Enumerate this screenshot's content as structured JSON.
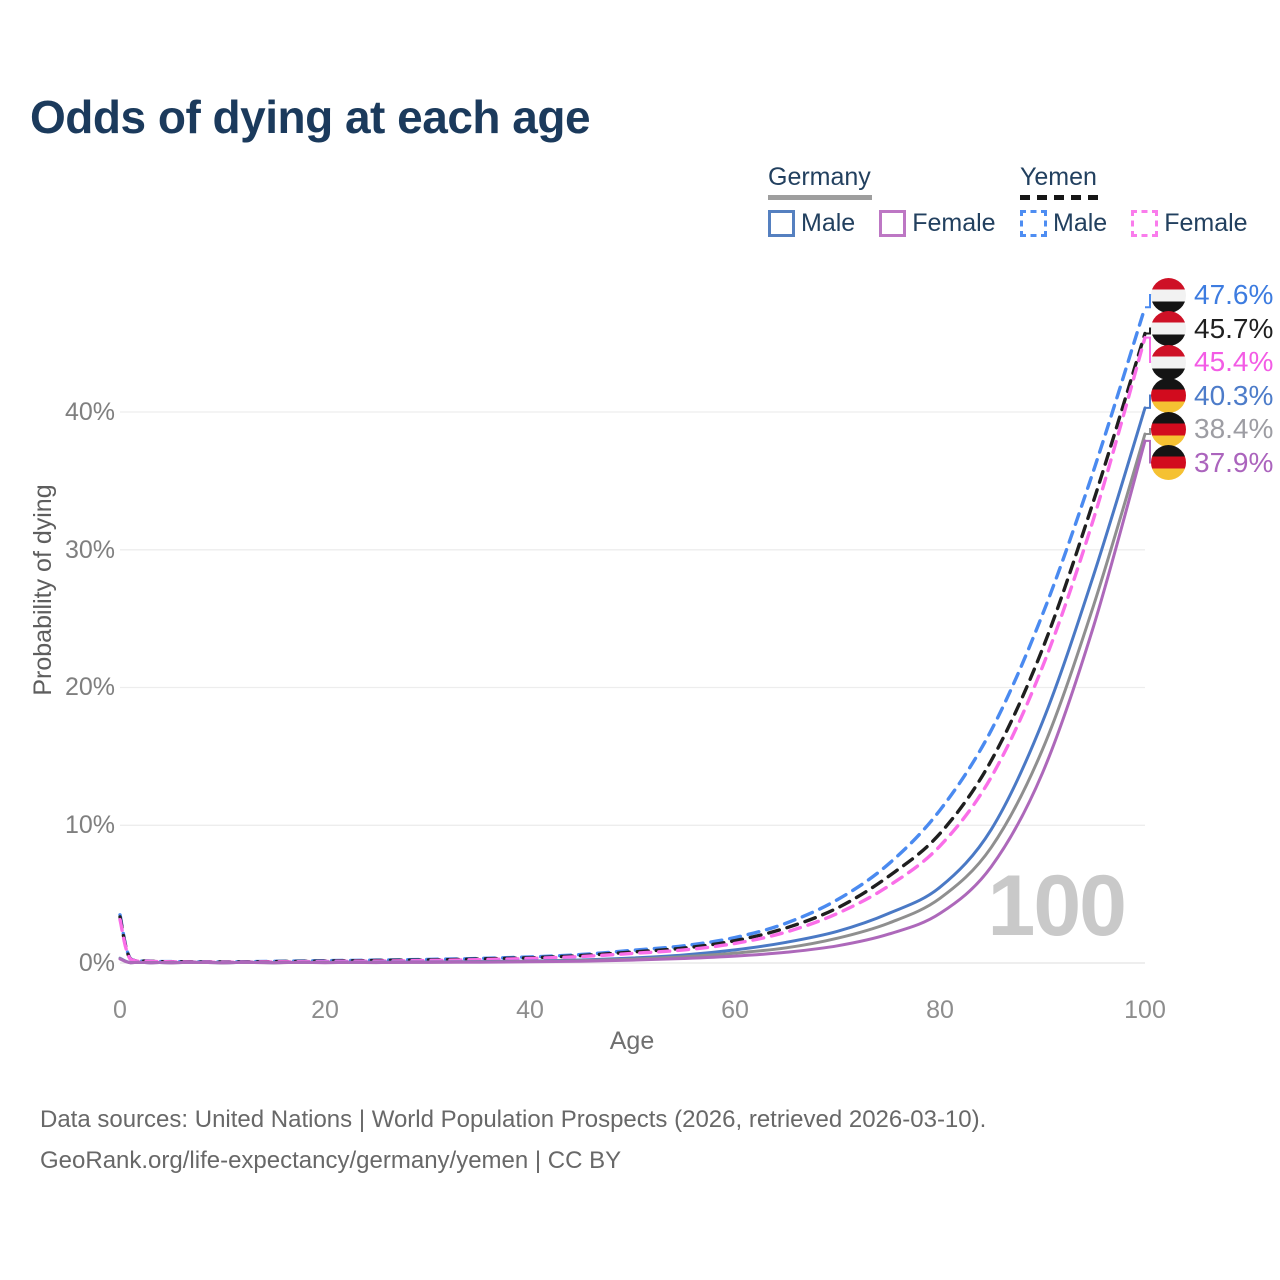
{
  "title": "Odds of dying at each age",
  "legend": {
    "groups": [
      {
        "label": "Germany",
        "line_style": "solid",
        "underline_color": "#9e9e9e",
        "items": [
          {
            "label": "Male",
            "color": "#5580c0"
          },
          {
            "label": "Female",
            "color": "#bd77c4"
          }
        ]
      },
      {
        "label": "Yemen",
        "line_style": "dashed",
        "underline_color": "#161616",
        "items": [
          {
            "label": "Male",
            "color": "#4e8df2"
          },
          {
            "label": "Female",
            "color": "#fa7cec"
          }
        ]
      }
    ]
  },
  "flags": {
    "yemen": [
      "#ce1126",
      "#f2f2f2",
      "#141414"
    ],
    "germany": [
      "#141414",
      "#d20b1e",
      "#f5c132"
    ]
  },
  "watermark": "100",
  "footer": {
    "line1": "Data sources: United Nations | World Population Prospects (2026, retrieved 2026-03-10).",
    "line2": "GeoRank.org/life-expectancy/germany/yemen | CC BY"
  },
  "chart_data": {
    "type": "line",
    "title": "Odds of dying at each age",
    "xlabel": "Age",
    "ylabel": "Probability of dying",
    "xlim": [
      0,
      100
    ],
    "ylim_pct": [
      0,
      48
    ],
    "x_ticks": [
      "0",
      "20",
      "40",
      "60",
      "80",
      "100"
    ],
    "y_ticks": [
      "0%",
      "10%",
      "20%",
      "30%",
      "40%"
    ],
    "grid": "horizontal-only",
    "legend_position": "top-right",
    "x": [
      0,
      1,
      3,
      5,
      10,
      15,
      20,
      25,
      30,
      35,
      40,
      45,
      50,
      55,
      60,
      65,
      70,
      75,
      80,
      85,
      90,
      95,
      100
    ],
    "series": [
      {
        "name": "Yemen Male",
        "flag": "yemen",
        "sex": "male",
        "dashed": true,
        "color": "#4a8af0",
        "label_color": "#3d7ce0",
        "end_label": "47.6%",
        "end_value_pct": 47.6,
        "values": [
          3.5,
          0.32,
          0.14,
          0.1,
          0.08,
          0.12,
          0.17,
          0.21,
          0.26,
          0.33,
          0.44,
          0.62,
          0.92,
          1.25,
          1.85,
          2.9,
          4.6,
          7.2,
          11.1,
          16.9,
          25.3,
          35.8,
          47.6
        ]
      },
      {
        "name": "Yemen",
        "flag": "yemen",
        "sex": "both",
        "dashed": true,
        "color": "#1f1f1f",
        "label_color": "#1f1f1f",
        "end_label": "45.7%",
        "end_value_pct": 45.7,
        "values": [
          3.35,
          0.3,
          0.13,
          0.095,
          0.07,
          0.1,
          0.14,
          0.18,
          0.22,
          0.29,
          0.38,
          0.54,
          0.8,
          1.08,
          1.62,
          2.55,
          4.0,
          6.3,
          9.4,
          14.7,
          22.8,
          33.6,
          45.7
        ]
      },
      {
        "name": "Yemen Female",
        "flag": "yemen",
        "sex": "female",
        "dashed": true,
        "color": "#fa6ee8",
        "label_color": "#f35ce5",
        "end_label": "45.4%",
        "end_value_pct": 45.4,
        "values": [
          3.15,
          0.28,
          0.12,
          0.09,
          0.06,
          0.08,
          0.11,
          0.14,
          0.18,
          0.24,
          0.33,
          0.47,
          0.7,
          0.95,
          1.42,
          2.25,
          3.6,
          5.6,
          8.5,
          13.5,
          21.5,
          32.3,
          45.4
        ]
      },
      {
        "name": "Germany Male",
        "flag": "germany",
        "sex": "male",
        "dashed": false,
        "color": "#4a79c5",
        "label_color": "#4d7cc9",
        "end_label": "40.3%",
        "end_value_pct": 40.3,
        "values": [
          0.35,
          0.03,
          0.015,
          0.012,
          0.01,
          0.022,
          0.05,
          0.06,
          0.07,
          0.1,
          0.14,
          0.22,
          0.36,
          0.58,
          0.95,
          1.5,
          2.3,
          3.6,
          5.5,
          9.7,
          17.5,
          28.2,
          40.3
        ]
      },
      {
        "name": "Germany",
        "flag": "germany",
        "sex": "both",
        "dashed": false,
        "color": "#8f8f8f",
        "label_color": "#9d9da3",
        "end_label": "38.4%",
        "end_value_pct": 38.4,
        "values": [
          0.33,
          0.025,
          0.012,
          0.011,
          0.009,
          0.018,
          0.038,
          0.045,
          0.055,
          0.078,
          0.11,
          0.175,
          0.285,
          0.455,
          0.72,
          1.1,
          1.8,
          2.9,
          4.7,
          8.4,
          15.5,
          26.0,
          38.4
        ]
      },
      {
        "name": "Germany Female",
        "flag": "germany",
        "sex": "female",
        "dashed": false,
        "color": "#ad68ba",
        "label_color": "#ab64bd",
        "end_label": "37.9%",
        "end_value_pct": 37.9,
        "values": [
          0.3,
          0.02,
          0.01,
          0.01,
          0.008,
          0.015,
          0.025,
          0.03,
          0.04,
          0.055,
          0.085,
          0.13,
          0.21,
          0.33,
          0.5,
          0.78,
          1.25,
          2.1,
          3.6,
          7.0,
          13.8,
          24.5,
          37.9
        ]
      }
    ]
  }
}
